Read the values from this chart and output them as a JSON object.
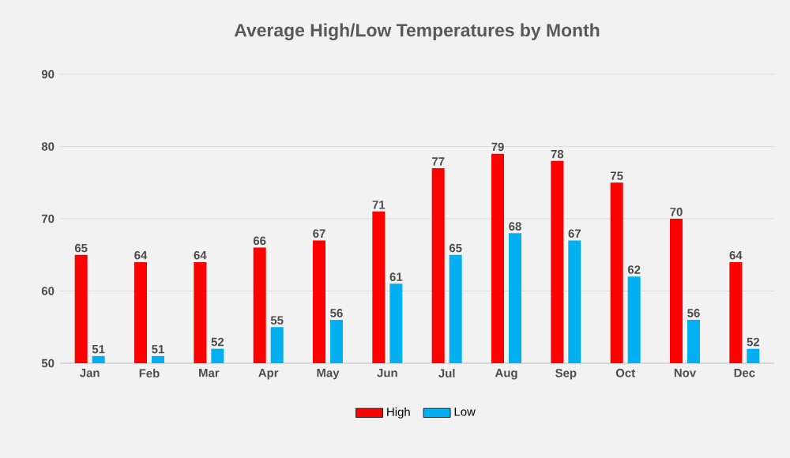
{
  "chart_data": {
    "type": "bar",
    "title": "Average High/Low Temperatures by Month",
    "categories": [
      "Jan",
      "Feb",
      "Mar",
      "Apr",
      "May",
      "Jun",
      "Jul",
      "Aug",
      "Sep",
      "Oct",
      "Nov",
      "Dec"
    ],
    "series": [
      {
        "name": "High",
        "color": "#ff0000",
        "values": [
          65,
          64,
          64,
          66,
          67,
          71,
          77,
          79,
          78,
          75,
          70,
          64
        ]
      },
      {
        "name": "Low",
        "color": "#00b0f0",
        "values": [
          51,
          51,
          52,
          55,
          56,
          61,
          65,
          68,
          67,
          62,
          56,
          52
        ]
      }
    ],
    "ylim": [
      50,
      90
    ],
    "yticks": [
      50,
      60,
      70,
      80,
      90
    ],
    "grid": "y",
    "legend": "bottom",
    "data_labels": true
  }
}
